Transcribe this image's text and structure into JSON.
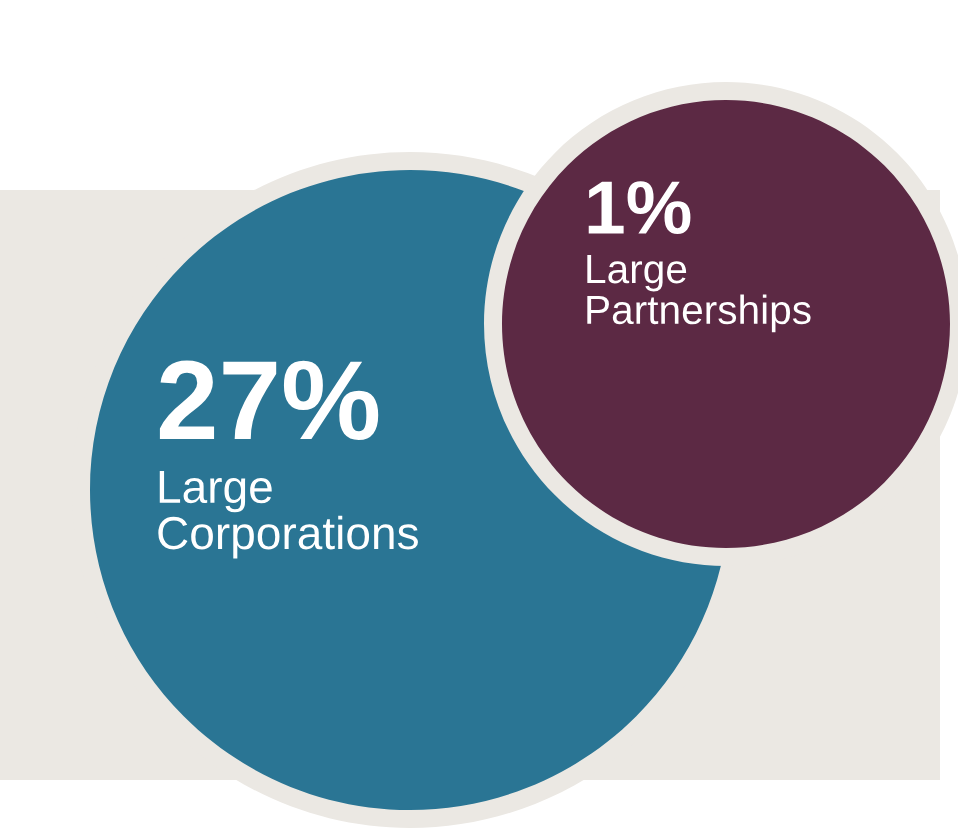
{
  "chart_data": {
    "type": "other",
    "categories": [
      "Large\nCorporations",
      "Large\nPartnerships"
    ],
    "values": [
      27,
      1
    ],
    "value_labels": [
      "27%",
      "1%"
    ],
    "colors": [
      "#2a7594",
      "#5c2944"
    ]
  }
}
